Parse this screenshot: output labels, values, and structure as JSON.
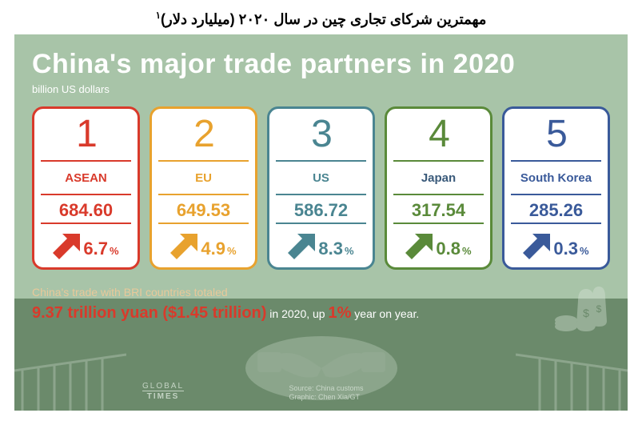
{
  "persian_title": "مهمترین شرکای تجاری چین در سال ۲۰۲۰ (میلیارد دلار)",
  "persian_footnote": "۱",
  "infographic": {
    "title": "China's major trade partners in 2020",
    "subtitle": "billion US dollars",
    "title_color": "#ffffff",
    "bg_top_color": "#a8c4a8",
    "bg_bottom_color": "#6b8a6b",
    "cards": [
      {
        "rank": "1",
        "name": "ASEAN",
        "value": "684.60",
        "change": "6.7",
        "color": "#d93a2b",
        "name_color": "#d93a2b"
      },
      {
        "rank": "2",
        "name": "EU",
        "value": "649.53",
        "change": "4.9",
        "color": "#e8a22e",
        "name_color": "#e8a22e"
      },
      {
        "rank": "3",
        "name": "US",
        "value": "586.72",
        "change": "8.3",
        "color": "#4a8591",
        "name_color": "#4a8591"
      },
      {
        "rank": "4",
        "name": "Japan",
        "value": "317.54",
        "change": "0.8",
        "color": "#5a8a3a",
        "name_color": "#3a5a7a"
      },
      {
        "rank": "5",
        "name": "South Korea",
        "value": "285.26",
        "change": "0.3",
        "color": "#3a5a9a",
        "name_color": "#3a5a9a"
      }
    ],
    "bri": {
      "line1": "China's trade with BRI countries totaled",
      "highlight": "9.37 trillion yuan ($1.45 trillion)",
      "after": " in 2020, up ",
      "pct": "1%",
      "tail": " year on year.",
      "line1_color": "#e8c99a",
      "highlight_color": "#d93a2b",
      "text_color": "#ffffff"
    },
    "credits": {
      "source": "Source: China customs",
      "graphic": "Graphic: Chen Xia/GT",
      "logo1": "GLOBAL",
      "logo2": "TIMES",
      "color": "#d8e4d8"
    },
    "pct_symbol": "%"
  }
}
